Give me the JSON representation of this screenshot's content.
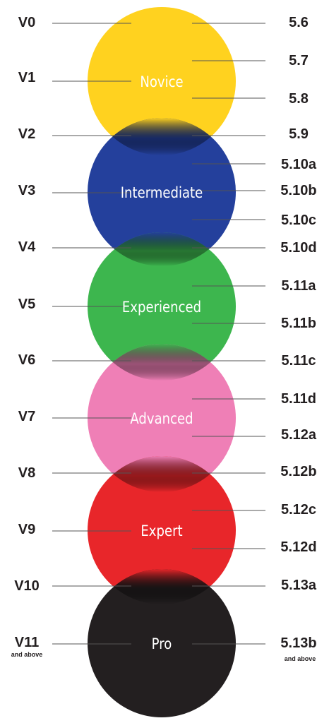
{
  "rows": [
    {
      "v": "V0",
      "yds": "5.6"
    },
    {
      "v": "V1",
      "yds": "5.7"
    },
    {
      "v": "",
      "yds": "5.8"
    },
    {
      "v": "V2",
      "yds": "5.9"
    },
    {
      "v": "",
      "yds": "5.10a"
    },
    {
      "v": "V3",
      "yds": "5.10b"
    },
    {
      "v": "",
      "yds": "5.10c"
    },
    {
      "v": "V4",
      "yds": "5.10d"
    },
    {
      "v": "",
      "yds": "5.11a"
    },
    {
      "v": "V5",
      "yds": "5.11b"
    },
    {
      "v": "V6",
      "yds": "5.11c"
    },
    {
      "v": "",
      "yds": "5.11d"
    },
    {
      "v": "V7",
      "yds": "5.12a"
    },
    {
      "v": "V8",
      "yds": "5.12b"
    },
    {
      "v": "",
      "yds": "5.12c"
    },
    {
      "v": "V9",
      "yds": "5.12d"
    },
    {
      "v": "V10",
      "yds": "5.13a"
    },
    {
      "v": "V11",
      "yds": "5.13b"
    }
  ],
  "footnotes": {
    "left": "and above",
    "right": "and above"
  },
  "levels": [
    {
      "name": "Novice",
      "color": "#ffd21f"
    },
    {
      "name": "Intermediate",
      "color": "#24409c"
    },
    {
      "name": "Experienced",
      "color": "#3db64e"
    },
    {
      "name": "Advanced",
      "color": "#ef7fb6"
    },
    {
      "name": "Expert",
      "color": "#e8262a"
    },
    {
      "name": "Pro",
      "color": "#231f20"
    }
  ]
}
